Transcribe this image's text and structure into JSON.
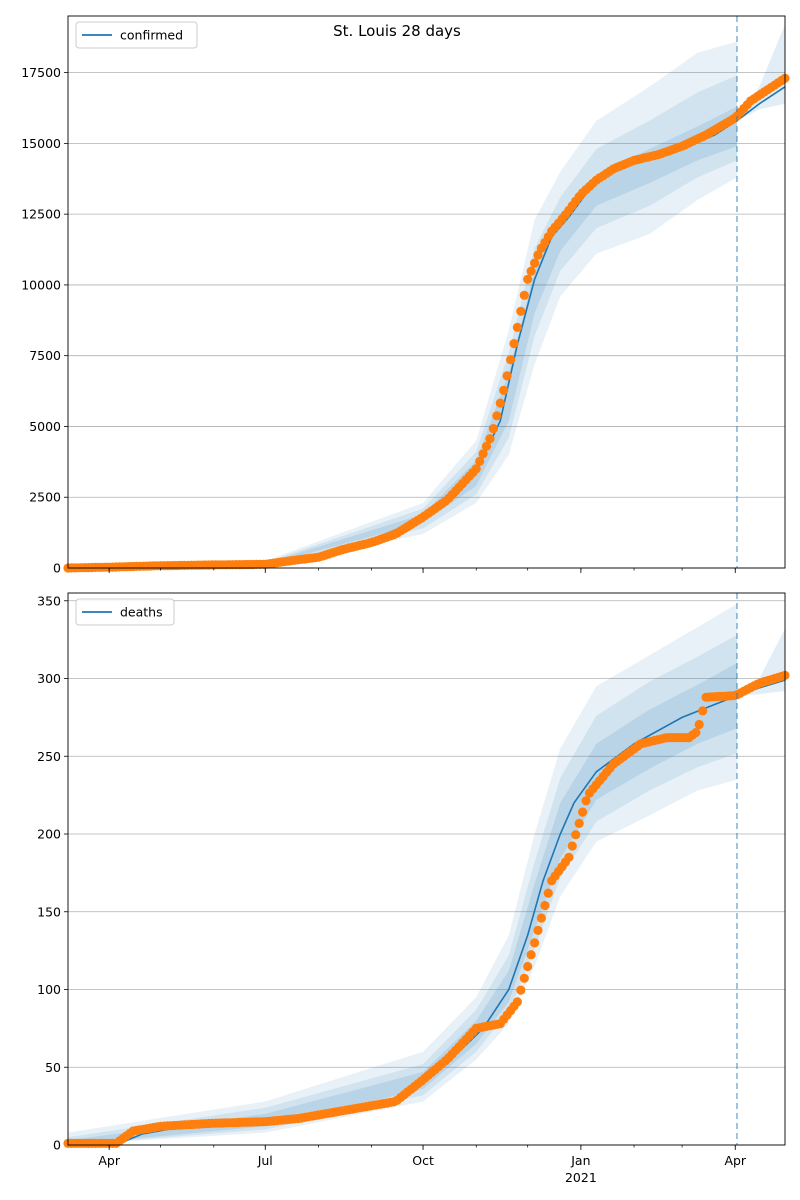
{
  "title": "St. Louis 28 days",
  "colors": {
    "model": "#1f77b4",
    "observed": "#ff7f0e",
    "band": "#1f77b4",
    "grid": "#b0b0b0",
    "forecast_line": "#1f77b4"
  },
  "x_ticks": [
    {
      "date": "2020-04-01",
      "label": "Apr",
      "sublabel": ""
    },
    {
      "date": "2020-07-01",
      "label": "Jul",
      "sublabel": ""
    },
    {
      "date": "2020-10-01",
      "label": "Oct",
      "sublabel": ""
    },
    {
      "date": "2021-01-01",
      "label": "Jan",
      "sublabel": "2021"
    },
    {
      "date": "2021-04-01",
      "label": "Apr",
      "sublabel": ""
    }
  ],
  "chart_data": [
    {
      "type": "line",
      "legend": [
        "confirmed"
      ],
      "legend_position": "top-left",
      "grid": "horizontal",
      "xlim": [
        "2020-03-08",
        "2021-04-30"
      ],
      "ylim": [
        0,
        19500
      ],
      "yticks": [
        0,
        2500,
        5000,
        7500,
        10000,
        12500,
        15000,
        17500
      ],
      "forecast_start": "2021-04-02",
      "series": [
        {
          "name": "confirmed",
          "x": [
            "2020-03-08",
            "2020-04-01",
            "2020-05-01",
            "2020-06-01",
            "2020-07-01",
            "2020-08-01",
            "2020-09-01",
            "2020-10-01",
            "2020-10-20",
            "2020-11-01",
            "2020-11-15",
            "2020-11-25",
            "2020-12-05",
            "2020-12-15",
            "2020-12-25",
            "2021-01-05",
            "2021-01-20",
            "2021-02-05",
            "2021-02-20",
            "2021-03-05",
            "2021-03-20",
            "2021-04-02",
            "2021-04-15",
            "2021-04-30"
          ],
          "y": [
            0,
            20,
            60,
            90,
            140,
            380,
            1000,
            1750,
            2550,
            3400,
            5200,
            7900,
            10200,
            11700,
            12400,
            13300,
            14100,
            14500,
            14700,
            14900,
            15300,
            15800,
            16400,
            17000
          ]
        },
        {
          "name": "observed",
          "x": [
            "2020-03-08",
            "2020-04-01",
            "2020-05-01",
            "2020-06-01",
            "2020-07-01",
            "2020-07-15",
            "2020-08-01",
            "2020-08-15",
            "2020-09-01",
            "2020-09-15",
            "2020-10-01",
            "2020-10-15",
            "2020-11-01",
            "2020-11-10",
            "2020-11-18",
            "2020-11-25",
            "2020-12-01",
            "2020-12-08",
            "2020-12-15",
            "2020-12-22",
            "2021-01-01",
            "2021-01-10",
            "2021-01-20",
            "2021-02-01",
            "2021-02-15",
            "2021-03-01",
            "2021-03-15",
            "2021-04-01",
            "2021-04-10",
            "2021-04-20",
            "2021-04-30"
          ],
          "y": [
            0,
            30,
            80,
            110,
            130,
            250,
            380,
            650,
            900,
            1200,
            1800,
            2400,
            3500,
            4700,
            6500,
            8500,
            10200,
            11200,
            11900,
            12400,
            13200,
            13700,
            14100,
            14400,
            14600,
            14900,
            15300,
            15900,
            16500,
            16900,
            17300
          ]
        }
      ],
      "bands": [
        {
          "name": "outer",
          "x": [
            "2020-03-08",
            "2020-07-01",
            "2020-10-01",
            "2020-11-01",
            "2020-11-20",
            "2020-12-05",
            "2020-12-20",
            "2021-01-10",
            "2021-02-10",
            "2021-03-10",
            "2021-04-02"
          ],
          "lower": [
            0,
            70,
            1200,
            2300,
            4000,
            7200,
            9600,
            11100,
            11800,
            13000,
            13800
          ],
          "upper": [
            50,
            250,
            2300,
            4500,
            8400,
            12300,
            14000,
            15800,
            17000,
            18200,
            18600
          ]
        },
        {
          "name": "middle",
          "x": [
            "2020-03-08",
            "2020-07-01",
            "2020-10-01",
            "2020-11-01",
            "2020-11-20",
            "2020-12-05",
            "2020-12-20",
            "2021-01-10",
            "2021-02-10",
            "2021-03-10",
            "2021-04-02"
          ],
          "lower": [
            0,
            90,
            1400,
            2600,
            4600,
            8200,
            10500,
            12000,
            12800,
            13800,
            14400
          ],
          "upper": [
            40,
            200,
            2100,
            4100,
            7600,
            11300,
            13100,
            14800,
            15800,
            16800,
            17400
          ]
        },
        {
          "name": "inner",
          "x": [
            "2020-03-08",
            "2020-07-01",
            "2020-10-01",
            "2020-11-01",
            "2020-11-20",
            "2020-12-05",
            "2020-12-20",
            "2021-01-10",
            "2021-02-10",
            "2021-03-10",
            "2021-04-02"
          ],
          "lower": [
            0,
            110,
            1600,
            2900,
            5200,
            9000,
            11200,
            12800,
            13600,
            14400,
            14900
          ],
          "upper": [
            30,
            170,
            1900,
            3800,
            6900,
            10500,
            12400,
            13900,
            14800,
            15600,
            16300
          ]
        },
        {
          "name": "forecast",
          "x": [
            "2021-04-02",
            "2021-04-15",
            "2021-04-30"
          ],
          "lower": [
            15800,
            16200,
            16400
          ],
          "upper": [
            15800,
            17000,
            19200
          ]
        }
      ]
    },
    {
      "type": "line",
      "legend": [
        "deaths"
      ],
      "legend_position": "top-left",
      "grid": "horizontal",
      "xlim": [
        "2020-03-08",
        "2021-04-30"
      ],
      "ylim": [
        0,
        355
      ],
      "yticks": [
        0,
        50,
        100,
        150,
        200,
        250,
        300,
        350
      ],
      "forecast_start": "2021-04-02",
      "series": [
        {
          "name": "deaths",
          "x": [
            "2020-03-08",
            "2020-04-05",
            "2020-04-20",
            "2020-05-15",
            "2020-06-15",
            "2020-07-15",
            "2020-08-15",
            "2020-09-15",
            "2020-10-01",
            "2020-10-20",
            "2020-11-05",
            "2020-11-20",
            "2020-12-01",
            "2020-12-10",
            "2020-12-20",
            "2020-12-28",
            "2021-01-10",
            "2021-02-01",
            "2021-03-01",
            "2021-04-02",
            "2021-04-15",
            "2021-04-30"
          ],
          "y": [
            0,
            0,
            7,
            12,
            14,
            15,
            20,
            28,
            40,
            58,
            75,
            100,
            135,
            170,
            200,
            220,
            240,
            258,
            275,
            289,
            294,
            299
          ]
        },
        {
          "name": "observed",
          "x": [
            "2020-03-08",
            "2020-04-05",
            "2020-04-15",
            "2020-05-01",
            "2020-06-01",
            "2020-07-01",
            "2020-07-20",
            "2020-08-15",
            "2020-09-15",
            "2020-10-01",
            "2020-10-15",
            "2020-11-01",
            "2020-11-15",
            "2020-11-25",
            "2020-12-05",
            "2020-12-15",
            "2020-12-25",
            "2021-01-05",
            "2021-01-20",
            "2021-02-05",
            "2021-02-20",
            "2021-03-05",
            "2021-03-10",
            "2021-03-15",
            "2021-04-01",
            "2021-04-15",
            "2021-04-30"
          ],
          "y": [
            1,
            1,
            9,
            12,
            14,
            15,
            17,
            22,
            28,
            42,
            55,
            75,
            78,
            92,
            130,
            170,
            185,
            225,
            245,
            258,
            262,
            262,
            266,
            288,
            289,
            297,
            302
          ]
        }
      ],
      "bands": [
        {
          "name": "outer",
          "x": [
            "2020-03-08",
            "2020-07-01",
            "2020-10-01",
            "2020-11-01",
            "2020-11-20",
            "2020-12-05",
            "2020-12-20",
            "2021-01-10",
            "2021-02-10",
            "2021-03-10",
            "2021-04-02"
          ],
          "lower": [
            0,
            8,
            28,
            55,
            78,
            115,
            160,
            195,
            212,
            228,
            235
          ],
          "upper": [
            8,
            28,
            60,
            95,
            135,
            200,
            255,
            295,
            315,
            333,
            348
          ]
        },
        {
          "name": "middle",
          "x": [
            "2020-03-08",
            "2020-07-01",
            "2020-10-01",
            "2020-11-01",
            "2020-11-20",
            "2020-12-05",
            "2020-12-20",
            "2021-01-10",
            "2021-02-10",
            "2021-03-10",
            "2021-04-02"
          ],
          "lower": [
            0,
            10,
            32,
            60,
            86,
            126,
            172,
            208,
            228,
            243,
            252
          ],
          "upper": [
            5,
            24,
            52,
            87,
            122,
            182,
            236,
            276,
            298,
            314,
            328
          ]
        },
        {
          "name": "inner",
          "x": [
            "2020-03-08",
            "2020-07-01",
            "2020-10-01",
            "2020-11-01",
            "2020-11-20",
            "2020-12-05",
            "2020-12-20",
            "2021-01-10",
            "2021-02-10",
            "2021-03-10",
            "2021-04-02"
          ],
          "lower": [
            0,
            12,
            36,
            65,
            92,
            138,
            184,
            222,
            242,
            258,
            268
          ],
          "upper": [
            3,
            20,
            47,
            80,
            112,
            168,
            220,
            258,
            280,
            296,
            310
          ]
        },
        {
          "name": "forecast",
          "x": [
            "2021-04-02",
            "2021-04-15",
            "2021-04-30"
          ],
          "lower": [
            289,
            290,
            292
          ],
          "upper": [
            289,
            300,
            332
          ]
        }
      ]
    }
  ]
}
